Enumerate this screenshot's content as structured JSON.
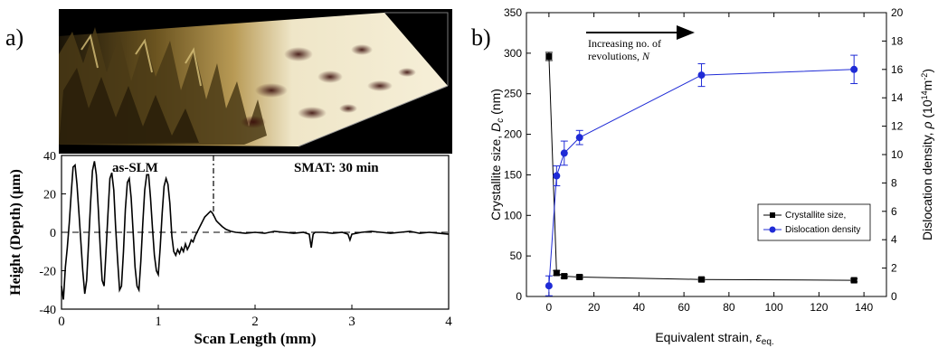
{
  "figure": {
    "panel_a_label": "a)",
    "panel_b_label": "b)"
  },
  "chart_data": [
    {
      "type": "line",
      "panel": "a",
      "xlabel": "Scan Length (mm)",
      "ylabel": "Height (Depth) (μm)",
      "xlim": [
        0,
        4
      ],
      "ylim": [
        -40,
        40
      ],
      "xticks": [
        "0",
        "1",
        "2",
        "3",
        "4"
      ],
      "yticks": [
        "-40",
        "-20",
        "0",
        "20",
        "40"
      ],
      "annotations": [
        "as-SLM",
        "SMAT: 30 min"
      ],
      "boundary_x": 1.57,
      "reference_line_y": 0,
      "series": [
        {
          "x": [
            0,
            0.02,
            0.04,
            0.06,
            0.08,
            0.1,
            0.12,
            0.14,
            0.16,
            0.18,
            0.2,
            0.22,
            0.24,
            0.26,
            0.28,
            0.3,
            0.32,
            0.34,
            0.36,
            0.38,
            0.4,
            0.42,
            0.44,
            0.46,
            0.48,
            0.5,
            0.52,
            0.54,
            0.56,
            0.58,
            0.6,
            0.62,
            0.64,
            0.66,
            0.68,
            0.7,
            0.72,
            0.74,
            0.76,
            0.78,
            0.8,
            0.82,
            0.84,
            0.86,
            0.88,
            0.9,
            0.92,
            0.94,
            0.96,
            0.98,
            1.0,
            1.02,
            1.04,
            1.06,
            1.08,
            1.1,
            1.12,
            1.14,
            1.16,
            1.18,
            1.2,
            1.22,
            1.24,
            1.26,
            1.28,
            1.3,
            1.32,
            1.34,
            1.36,
            1.38,
            1.4,
            1.42,
            1.44,
            1.46,
            1.48,
            1.5,
            1.52,
            1.54,
            1.56,
            1.58,
            1.6,
            1.62,
            1.66,
            1.7,
            1.75,
            1.8,
            1.9,
            2.0,
            2.1,
            2.2,
            2.3,
            2.4,
            2.5,
            2.56,
            2.58,
            2.6,
            2.62,
            2.7,
            2.8,
            2.9,
            2.96,
            2.98,
            3.0,
            3.1,
            3.2,
            3.3,
            3.4,
            3.5,
            3.6,
            3.7,
            3.8,
            3.9,
            4.0
          ],
          "y": [
            -28,
            -35,
            -18,
            -8,
            5,
            20,
            34,
            35,
            25,
            10,
            -5,
            -20,
            -32,
            -25,
            -5,
            15,
            32,
            37,
            30,
            12,
            -8,
            -25,
            -28,
            -10,
            10,
            28,
            31,
            22,
            2,
            -15,
            -30,
            -28,
            -10,
            12,
            26,
            28,
            18,
            0,
            -18,
            -28,
            -30,
            -15,
            5,
            22,
            30,
            30,
            18,
            2,
            -12,
            -20,
            -22,
            -8,
            10,
            24,
            28,
            25,
            15,
            -2,
            -10,
            -12,
            -9,
            -11,
            -8,
            -10,
            -6,
            -9,
            -7,
            -4,
            -5,
            -2,
            0,
            2,
            4,
            6,
            8,
            9,
            10,
            11,
            10,
            8,
            6,
            5,
            3,
            1.5,
            0.5,
            0,
            -0.5,
            0,
            -0.5,
            0.5,
            0,
            -0.5,
            0,
            -1,
            -8,
            -1,
            0,
            0,
            -0.5,
            0,
            -1,
            -4,
            -1,
            0,
            0.5,
            0,
            -0.5,
            0,
            0.5,
            -0.5,
            0,
            -0.5,
            -1
          ]
        }
      ]
    },
    {
      "type": "line",
      "panel": "b",
      "xlabel": "Equivalent strain, ε_eq.",
      "ylabel_left": "Crystallite size, D_c (nm)",
      "ylabel_right": "Dislocation density, ρ (10^14 m^-2)",
      "xlim": [
        -10,
        150
      ],
      "ylim_left": [
        0,
        350
      ],
      "ylim_right": [
        0,
        20
      ],
      "xticks": [
        "0",
        "20",
        "40",
        "60",
        "80",
        "100",
        "120",
        "140"
      ],
      "yticks_left": [
        "0",
        "50",
        "100",
        "150",
        "200",
        "250",
        "300",
        "350"
      ],
      "yticks_right": [
        "0",
        "2",
        "4",
        "6",
        "8",
        "10",
        "12",
        "14",
        "16",
        "18",
        "20"
      ],
      "annotation": "Increasing no. of revolutions, N",
      "legend_position": "lower-right",
      "series": [
        {
          "name": "Crystallite size,",
          "axis": "left",
          "color": "#000000",
          "marker": "square",
          "x": [
            0,
            3.4,
            6.8,
            13.6,
            67.8,
            135.6
          ],
          "y": [
            296,
            29,
            25,
            24,
            21,
            20
          ],
          "err": [
            5,
            3,
            2,
            2,
            2,
            2
          ]
        },
        {
          "name": "Dislocation density",
          "axis": "right",
          "color": "#1f2bd6",
          "marker": "circle",
          "x": [
            0,
            3.4,
            6.8,
            13.6,
            67.8,
            135.6
          ],
          "y": [
            0.75,
            8.5,
            10.1,
            11.2,
            15.6,
            16.0
          ],
          "err": [
            0.7,
            0.7,
            0.85,
            0.5,
            0.8,
            1.0
          ]
        }
      ]
    }
  ]
}
